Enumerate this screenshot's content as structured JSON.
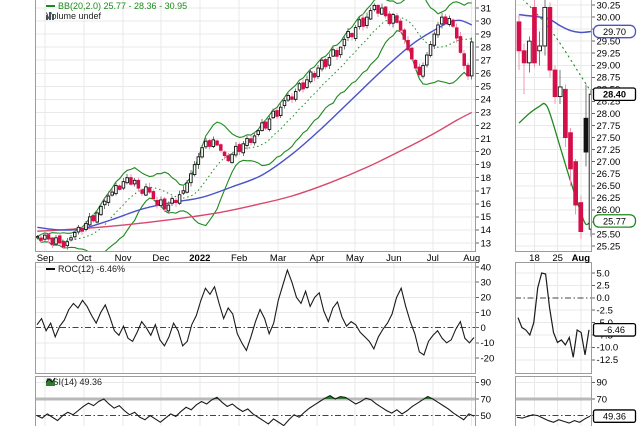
{
  "chart_data": {
    "type": "candlestick",
    "layout": "daily-chart-with-zoom-panel-roc-rsi",
    "colors": {
      "bb_band": "#1e8a1e",
      "ma_fast": "#4a52c8",
      "ma_slow": "#d9486e",
      "candle_down": "#d40f4a",
      "candle_down_wick": "#f097b2",
      "candle_black": "#111111",
      "candle_up_fill": "#ffffff",
      "indicator_line": "#1b1b1b",
      "rsi_overbought_fill": "#2e7d32",
      "grid": "#e9e9e9",
      "panel_border": "#9c9c9c",
      "box_blue": "#4a52c8",
      "box_green": "#1e8a1e",
      "box_black": "#000000"
    },
    "main": {
      "label_bb": "BB(20,2.0) 25.77 - 28.36 - 30.95",
      "label_volume": "Volume undef",
      "ylim": [
        12.3,
        31.6
      ],
      "y_ticks": [
        31,
        30,
        29,
        28,
        27,
        26,
        25,
        24,
        23,
        22,
        21,
        20,
        19,
        18,
        17,
        16,
        15,
        14,
        13
      ],
      "x_ticks": [
        {
          "label": "Sep",
          "i": 2.1
        },
        {
          "label": "Oct",
          "i": 12.5
        },
        {
          "label": "Nov",
          "i": 22.9
        },
        {
          "label": "Dec",
          "i": 33
        },
        {
          "label": "2022",
          "i": 43.4,
          "bold": true
        },
        {
          "label": "Feb",
          "i": 53.9
        },
        {
          "label": "Mar",
          "i": 64.3
        },
        {
          "label": "Apr",
          "i": 74.7
        },
        {
          "label": "May",
          "i": 84.8
        },
        {
          "label": "Jun",
          "i": 95.2
        },
        {
          "label": "Jul",
          "i": 105.6
        },
        {
          "label": "Aug",
          "i": 116
        }
      ],
      "bb_window": 12,
      "bb_mult": 2,
      "closes": [
        13.5,
        13.2,
        13.6,
        13.3,
        12.9,
        13.4,
        13.0,
        12.7,
        13.1,
        13.4,
        13.8,
        14.2,
        13.9,
        14.5,
        15.0,
        14.7,
        15.3,
        15.8,
        16.2,
        16.6,
        16.9,
        17.4,
        17.1,
        17.7,
        18.0,
        17.5,
        17.8,
        17.2,
        16.8,
        17.3,
        16.9,
        16.4,
        15.9,
        16.3,
        15.6,
        15.9,
        16.4,
        16.1,
        16.7,
        17.0,
        17.6,
        18.3,
        19.0,
        19.6,
        20.3,
        20.8,
        20.4,
        20.9,
        20.5,
        20.1,
        19.7,
        19.3,
        19.8,
        20.4,
        20.0,
        20.6,
        21.0,
        20.7,
        21.2,
        21.6,
        22.2,
        21.8,
        22.5,
        23.1,
        22.7,
        23.4,
        23.9,
        24.3,
        24.0,
        24.6,
        25.2,
        24.8,
        25.5,
        26.1,
        25.7,
        26.4,
        27.0,
        26.5,
        27.2,
        27.8,
        27.3,
        28.0,
        28.6,
        29.2,
        28.8,
        29.5,
        30.1,
        29.6,
        30.3,
        30.8,
        31.2,
        30.6,
        31.0,
        30.4,
        29.8,
        30.5,
        29.9,
        29.3,
        28.6,
        27.8,
        27.1,
        26.4,
        25.9,
        26.6,
        27.4,
        28.2,
        29.0,
        29.7,
        30.3,
        29.8,
        30.2,
        29.6,
        28.7,
        27.6,
        26.6,
        25.8,
        28.4
      ],
      "ma_fast_points": [
        [
          0,
          14.2
        ],
        [
          6,
          14.0
        ],
        [
          12,
          14.1
        ],
        [
          20,
          14.8
        ],
        [
          28,
          15.6
        ],
        [
          36,
          16.1
        ],
        [
          44,
          16.5
        ],
        [
          52,
          17.3
        ],
        [
          60,
          18.2
        ],
        [
          68,
          19.8
        ],
        [
          76,
          21.8
        ],
        [
          84,
          24.0
        ],
        [
          92,
          26.2
        ],
        [
          100,
          28.2
        ],
        [
          106,
          29.3
        ],
        [
          110,
          29.9
        ],
        [
          113,
          30.05
        ],
        [
          116,
          29.7
        ]
      ],
      "ma_slow_points": [
        [
          0,
          13.9
        ],
        [
          12,
          14.1
        ],
        [
          24,
          14.4
        ],
        [
          36,
          14.8
        ],
        [
          48,
          15.3
        ],
        [
          58,
          15.9
        ],
        [
          68,
          16.6
        ],
        [
          78,
          17.6
        ],
        [
          88,
          18.8
        ],
        [
          98,
          20.2
        ],
        [
          106,
          21.4
        ],
        [
          112,
          22.4
        ],
        [
          116,
          23.0
        ]
      ]
    },
    "zoom": {
      "ylim": [
        25.15,
        30.35
      ],
      "y_ticks": [
        "30.25",
        "30.00",
        "29.75",
        "29.50",
        "29.25",
        "29.00",
        "28.75",
        "28.50",
        "28.25",
        "28.00",
        "27.75",
        "27.50",
        "27.25",
        "27.00",
        "26.75",
        "26.50",
        "26.25",
        "26.00",
        "25.75",
        "25.50",
        "25.25"
      ],
      "x_ticks": [
        {
          "label": "18",
          "i": 3
        },
        {
          "label": "25",
          "i": 7.5
        },
        {
          "label": "Aug",
          "i": 12,
          "bold": true
        }
      ],
      "candles": [
        [
          29.9,
          30.05,
          28.9,
          29.3
        ],
        [
          29.3,
          29.45,
          28.4,
          29.05
        ],
        [
          29.05,
          29.6,
          28.85,
          29.5
        ],
        [
          30.2,
          30.35,
          28.95,
          29.05
        ],
        [
          29.3,
          29.7,
          29.0,
          29.4
        ],
        [
          29.4,
          30.45,
          29.2,
          30.2
        ],
        [
          30.2,
          30.3,
          28.75,
          28.9
        ],
        [
          28.9,
          29.0,
          28.2,
          28.35
        ],
        [
          28.35,
          28.9,
          28.2,
          28.55
        ],
        [
          28.5,
          28.6,
          27.3,
          27.5
        ],
        [
          27.6,
          27.7,
          26.5,
          26.85
        ],
        [
          27.0,
          27.05,
          25.9,
          26.1
        ],
        [
          26.15,
          26.3,
          25.4,
          25.55
        ],
        [
          27.9,
          28.6,
          26.9,
          27.2
        ],
        [
          25.6,
          28.5,
          25.45,
          28.4
        ]
      ],
      "ma_fast_points": [
        [
          0,
          30.05
        ],
        [
          4,
          30.0
        ],
        [
          6,
          29.95
        ],
        [
          8,
          29.82
        ],
        [
          10,
          29.72
        ],
        [
          12,
          29.68
        ],
        [
          14,
          29.7
        ]
      ],
      "bb_mid_points": [
        [
          0,
          30.45
        ],
        [
          3,
          30.12
        ],
        [
          6,
          29.75
        ],
        [
          8,
          29.45
        ],
        [
          10,
          29.12
        ],
        [
          12,
          28.78
        ],
        [
          14,
          28.45
        ]
      ],
      "bb_low_points": [
        [
          0,
          27.8
        ],
        [
          2,
          28.0
        ],
        [
          4,
          28.15
        ],
        [
          5,
          28.2
        ],
        [
          6,
          28.0
        ],
        [
          8,
          27.3
        ],
        [
          10,
          26.6
        ],
        [
          12,
          25.95
        ],
        [
          13,
          25.7
        ],
        [
          14,
          25.77
        ]
      ],
      "value_boxes": [
        {
          "value": 29.7,
          "label": "29.70",
          "style": "blue"
        },
        {
          "value": 28.4,
          "label": "28.40",
          "style": "black-bold"
        },
        {
          "value": 25.77,
          "label": "25.77",
          "style": "green"
        }
      ]
    },
    "roc": {
      "label": "ROC(12) -6.46%",
      "y_ticks": [
        40,
        30,
        20,
        10,
        0,
        -10,
        -20
      ],
      "zero_line": 0,
      "values": [
        2,
        6,
        -2,
        3,
        -6,
        1,
        5,
        12,
        16,
        13,
        18,
        14,
        8,
        3,
        10,
        15,
        7,
        -2,
        -5,
        1,
        -7,
        -9,
        -3,
        4,
        0,
        -5,
        2,
        -8,
        -12,
        -6,
        3,
        -2,
        -12,
        -9,
        2,
        8,
        18,
        26,
        22,
        27,
        16,
        6,
        13,
        9,
        -4,
        -10,
        -15,
        -6,
        4,
        12,
        6,
        -4,
        3,
        18,
        28,
        38,
        30,
        20,
        16,
        24,
        14,
        20,
        23,
        11,
        4,
        13,
        17,
        7,
        1,
        4,
        2,
        -3,
        -6,
        -9,
        -14,
        -6,
        -1,
        3,
        9,
        20,
        26,
        14,
        4,
        -4,
        -16,
        -18,
        -9,
        -5,
        -2,
        -7,
        -10,
        -8,
        -1,
        4,
        -7,
        -10,
        -6.46
      ]
    },
    "roc_zoom": {
      "y_ticks": [
        "5.0",
        "2.5",
        "0.0",
        "-2.5",
        "-5.0",
        "-7.5",
        "-10.0",
        "-12.5"
      ],
      "zero_line": 0,
      "values": [
        -4,
        -6,
        -6.5,
        -7.5,
        -5,
        2,
        5,
        4.8,
        -2,
        -7,
        -9,
        -8.5,
        -9.5,
        -8,
        -12,
        -6.5,
        -7,
        -11.5,
        -6.46
      ],
      "value_box": {
        "value": -6.46,
        "label": "-6.46"
      }
    },
    "rsi": {
      "label": "RSI(14) 49.36",
      "y_ticks": [
        90,
        70,
        50
      ],
      "overbought": 70,
      "midline": 50,
      "values": [
        50,
        47,
        52,
        48,
        44,
        50,
        54,
        51,
        56,
        61,
        65,
        62,
        67,
        70,
        64,
        59,
        62,
        56,
        51,
        54,
        48,
        45,
        50,
        46,
        42,
        47,
        52,
        49,
        55,
        60,
        57,
        63,
        67,
        64,
        69,
        72,
        66,
        61,
        64,
        59,
        55,
        58,
        52,
        48,
        44,
        40,
        46,
        42,
        38,
        45,
        51,
        48,
        54,
        59,
        63,
        67,
        71,
        74,
        70,
        73,
        72,
        68,
        64,
        67,
        71,
        69,
        64,
        60,
        56,
        53,
        57,
        52,
        56,
        61,
        65,
        69,
        73,
        70,
        66,
        62,
        58,
        53,
        49,
        45,
        52,
        49.36
      ]
    },
    "rsi_zoom": {
      "y_ticks": [
        90,
        70,
        50
      ],
      "overbought": 70,
      "midline": 50,
      "values": [
        48,
        47,
        49,
        51,
        50,
        47,
        44,
        42,
        45,
        43,
        41,
        44,
        42,
        46,
        49.36
      ],
      "value_box": {
        "value": 49.36,
        "label": "49.36"
      }
    }
  }
}
